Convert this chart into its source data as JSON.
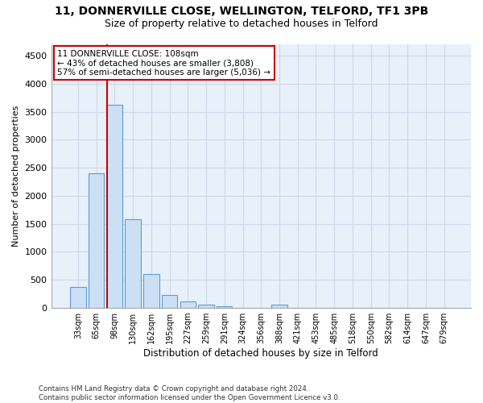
{
  "title": "11, DONNERVILLE CLOSE, WELLINGTON, TELFORD, TF1 3PB",
  "subtitle": "Size of property relative to detached houses in Telford",
  "xlabel": "Distribution of detached houses by size in Telford",
  "ylabel": "Number of detached properties",
  "footer_line1": "Contains HM Land Registry data © Crown copyright and database right 2024.",
  "footer_line2": "Contains public sector information licensed under the Open Government Licence v3.0.",
  "bar_color": "#cce0f5",
  "bar_edge_color": "#5b9bd5",
  "grid_color": "#d0d8e8",
  "annotation_line_color": "#cc0000",
  "annotation_box_color": "#cc0000",
  "annotation_text_line1": "11 DONNERVILLE CLOSE: 108sqm",
  "annotation_text_line2": "← 43% of detached houses are smaller (3,808)",
  "annotation_text_line3": "57% of semi-detached houses are larger (5,036) →",
  "bin_labels": [
    "33sqm",
    "65sqm",
    "98sqm",
    "130sqm",
    "162sqm",
    "195sqm",
    "227sqm",
    "259sqm",
    "291sqm",
    "324sqm",
    "356sqm",
    "388sqm",
    "421sqm",
    "453sqm",
    "485sqm",
    "518sqm",
    "550sqm",
    "582sqm",
    "614sqm",
    "647sqm",
    "679sqm"
  ],
  "bar_values": [
    370,
    2400,
    3620,
    1580,
    600,
    230,
    110,
    60,
    35,
    0,
    0,
    60,
    0,
    0,
    0,
    0,
    0,
    0,
    0,
    0,
    0
  ],
  "ylim": [
    0,
    4700
  ],
  "yticks": [
    0,
    500,
    1000,
    1500,
    2000,
    2500,
    3000,
    3500,
    4000,
    4500
  ],
  "vline_bar_idx": 2,
  "figsize": [
    6.0,
    5.0
  ],
  "dpi": 100,
  "background_color": "#ffffff",
  "plot_bg_color": "#e8f0fa"
}
